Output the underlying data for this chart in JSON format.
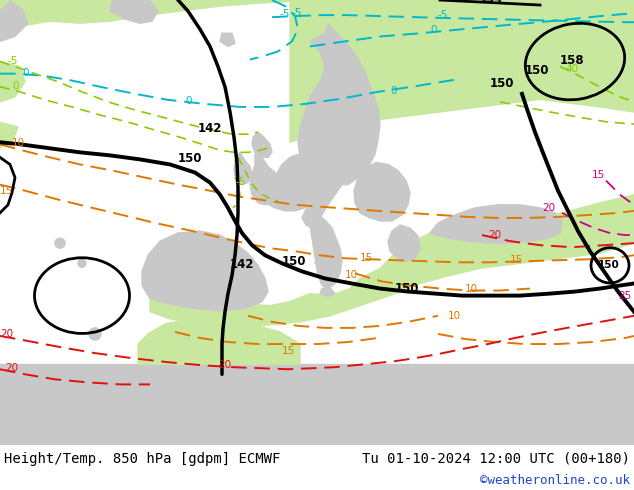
{
  "title_left": "Height/Temp. 850 hPa [gdpm] ECMWF",
  "title_right": "Tu 01-10-2024 12:00 UTC (00+180)",
  "credit": "©weatheronline.co.uk",
  "title_fontsize": 10,
  "credit_fontsize": 9,
  "fig_width": 6.34,
  "fig_height": 4.9,
  "dpi": 100,
  "sea_color": "#e8e8e8",
  "land_green": "#c8e8a0",
  "land_gray": "#b0b0b0",
  "land_gray2": "#c8c8c8"
}
